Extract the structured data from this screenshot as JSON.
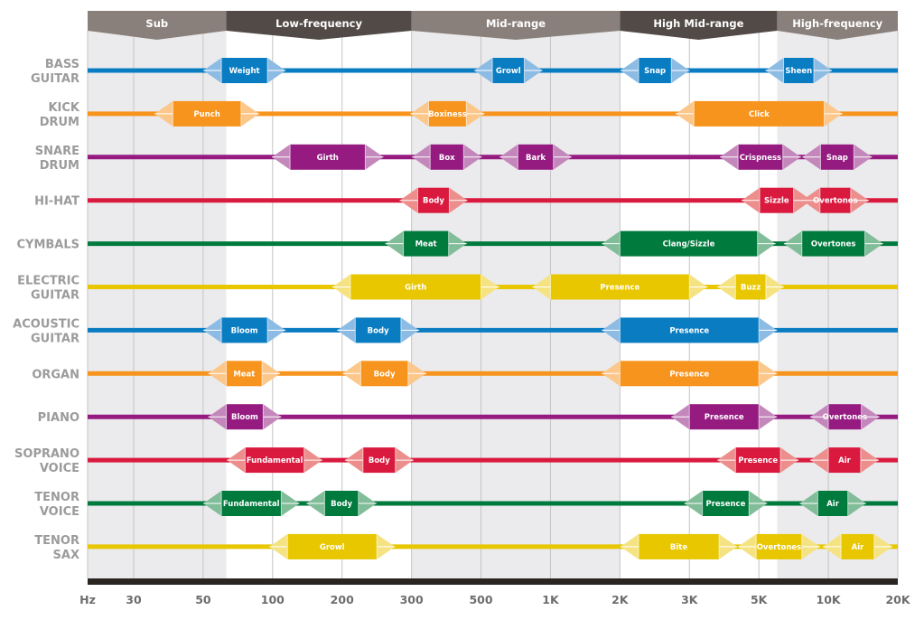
{
  "chart_data": {
    "type": "frequency-range-chart",
    "x_unit_label": "Hz",
    "x_scale": "log",
    "x_ticks": [
      {
        "value": 30,
        "label": "30"
      },
      {
        "value": 50,
        "label": "50"
      },
      {
        "value": 100,
        "label": "100"
      },
      {
        "value": 200,
        "label": "200"
      },
      {
        "value": 300,
        "label": "300"
      },
      {
        "value": 500,
        "label": "500"
      },
      {
        "value": 1000,
        "label": "1K"
      },
      {
        "value": 2000,
        "label": "2K"
      },
      {
        "value": 3000,
        "label": "3K"
      },
      {
        "value": 5000,
        "label": "5K"
      },
      {
        "value": 10000,
        "label": "10K"
      },
      {
        "value": 20000,
        "label": "20K"
      }
    ],
    "ranges": [
      {
        "label": "Sub",
        "from": 20,
        "to": 63,
        "tone": "light"
      },
      {
        "label": "Low-frequency",
        "from": 63,
        "to": 300,
        "tone": "dark"
      },
      {
        "label": "Mid-range",
        "from": 300,
        "to": 2000,
        "tone": "light"
      },
      {
        "label": "High Mid-range",
        "from": 2000,
        "to": 6000,
        "tone": "dark"
      },
      {
        "label": "High-frequency",
        "from": 6000,
        "to": 20000,
        "tone": "light"
      }
    ],
    "instruments": [
      {
        "name": [
          "BASS",
          "GUITAR"
        ],
        "color": "#0a7dc2",
        "light": "#8cbbe4",
        "bands": [
          {
            "label": "Weight",
            "from": 60,
            "to": 95
          },
          {
            "label": "Growl",
            "from": 560,
            "to": 770
          },
          {
            "label": "Snap",
            "from": 2230,
            "to": 2700
          },
          {
            "label": "Sheen",
            "from": 6400,
            "to": 8650
          }
        ]
      },
      {
        "name": [
          "KICK",
          "DRUM"
        ],
        "color": "#f7941d",
        "light": "#fcc78a",
        "bands": [
          {
            "label": "Punch",
            "from": 40,
            "to": 73
          },
          {
            "label": "Boxiness",
            "from": 340,
            "to": 449
          },
          {
            "label": "Click",
            "from": 3100,
            "to": 9600
          }
        ]
      },
      {
        "name": [
          "SNARE",
          "DRUM"
        ],
        "color": "#951b81",
        "light": "#c487bb",
        "bands": [
          {
            "label": "Girth",
            "from": 119,
            "to": 229
          },
          {
            "label": "Box",
            "from": 344,
            "to": 440
          },
          {
            "label": "Bark",
            "from": 722,
            "to": 1030
          },
          {
            "label": "Crispness",
            "from": 4290,
            "to": 6350
          },
          {
            "label": "Snap",
            "from": 9250,
            "to": 12900
          }
        ]
      },
      {
        "name": [
          "HI-HAT"
        ],
        "color": "#d91a3e",
        "light": "#ec8e8c",
        "bands": [
          {
            "label": "Body",
            "from": 314,
            "to": 396
          },
          {
            "label": "Sizzle",
            "from": 5040,
            "to": 7070
          },
          {
            "label": "Overtones",
            "from": 9200,
            "to": 12500
          }
        ]
      },
      {
        "name": [
          "CYMBALS"
        ],
        "color": "#007a3d",
        "light": "#80bd98",
        "bands": [
          {
            "label": "Meat",
            "from": 286,
            "to": 394
          },
          {
            "label": "Clang/Sizzle",
            "from": 2000,
            "to": 4950
          },
          {
            "label": "Overtones",
            "from": 7680,
            "to": 14400
          }
        ]
      },
      {
        "name": [
          "ELECTRIC",
          "GUITAR"
        ],
        "color": "#e8c700",
        "light": "#f5e383",
        "bands": [
          {
            "label": "Girth",
            "from": 210,
            "to": 500
          },
          {
            "label": "Presence",
            "from": 1000,
            "to": 3000
          },
          {
            "label": "Buzz",
            "from": 4210,
            "to": 5360
          }
        ]
      },
      {
        "name": [
          "ACOUSTIC",
          "GUITAR"
        ],
        "color": "#0a7dc2",
        "light": "#8cbbe4",
        "bands": [
          {
            "label": "Bloom",
            "from": 60,
            "to": 95
          },
          {
            "label": "Body",
            "from": 216,
            "to": 282
          },
          {
            "label": "Presence",
            "from": 2000,
            "to": 5000
          }
        ]
      },
      {
        "name": [
          "ORGAN"
        ],
        "color": "#f7941d",
        "light": "#fcc78a",
        "bands": [
          {
            "label": "Meat",
            "from": 63,
            "to": 90
          },
          {
            "label": "Body",
            "from": 223,
            "to": 294
          },
          {
            "label": "Presence",
            "from": 2000,
            "to": 5000
          }
        ]
      },
      {
        "name": [
          "PIANO"
        ],
        "color": "#951b81",
        "light": "#c487bb",
        "bands": [
          {
            "label": "Bloom",
            "from": 63,
            "to": 91
          },
          {
            "label": "Presence",
            "from": 3000,
            "to": 5000
          },
          {
            "label": "Overtones",
            "from": 10000,
            "to": 13900
          }
        ]
      },
      {
        "name": [
          "SOPRANO",
          "VOICE"
        ],
        "color": "#d91a3e",
        "light": "#ec8e8c",
        "bands": [
          {
            "label": "Fundamental",
            "from": 76,
            "to": 137
          },
          {
            "label": "Body",
            "from": 226,
            "to": 273
          },
          {
            "label": "Presence",
            "from": 4210,
            "to": 6200
          },
          {
            "label": "Air",
            "from": 10000,
            "to": 13800
          }
        ]
      },
      {
        "name": [
          "TENOR",
          "VOICE"
        ],
        "color": "#007a3d",
        "light": "#80bd98",
        "bands": [
          {
            "label": "Fundamental",
            "from": 60,
            "to": 109
          },
          {
            "label": "Body",
            "from": 168,
            "to": 220
          },
          {
            "label": "Presence",
            "from": 3300,
            "to": 4650
          },
          {
            "label": "Air",
            "from": 9000,
            "to": 12150
          }
        ]
      },
      {
        "name": [
          "TENOR",
          "SAX"
        ],
        "color": "#e8c700",
        "light": "#f5e383",
        "bands": [
          {
            "label": "Growl",
            "from": 116,
            "to": 245
          },
          {
            "label": "Bite",
            "from": 2230,
            "to": 3730
          },
          {
            "label": "Overtones",
            "from": 4900,
            "to": 7680
          },
          {
            "label": "Air",
            "from": 11350,
            "to": 15800
          }
        ]
      }
    ],
    "colors": {
      "band_light": "#8a807b",
      "band_dark": "#524a46",
      "shade_light": "#ebebed",
      "grid": "#c4c4c4",
      "axis_bar": "#2a2521"
    }
  }
}
